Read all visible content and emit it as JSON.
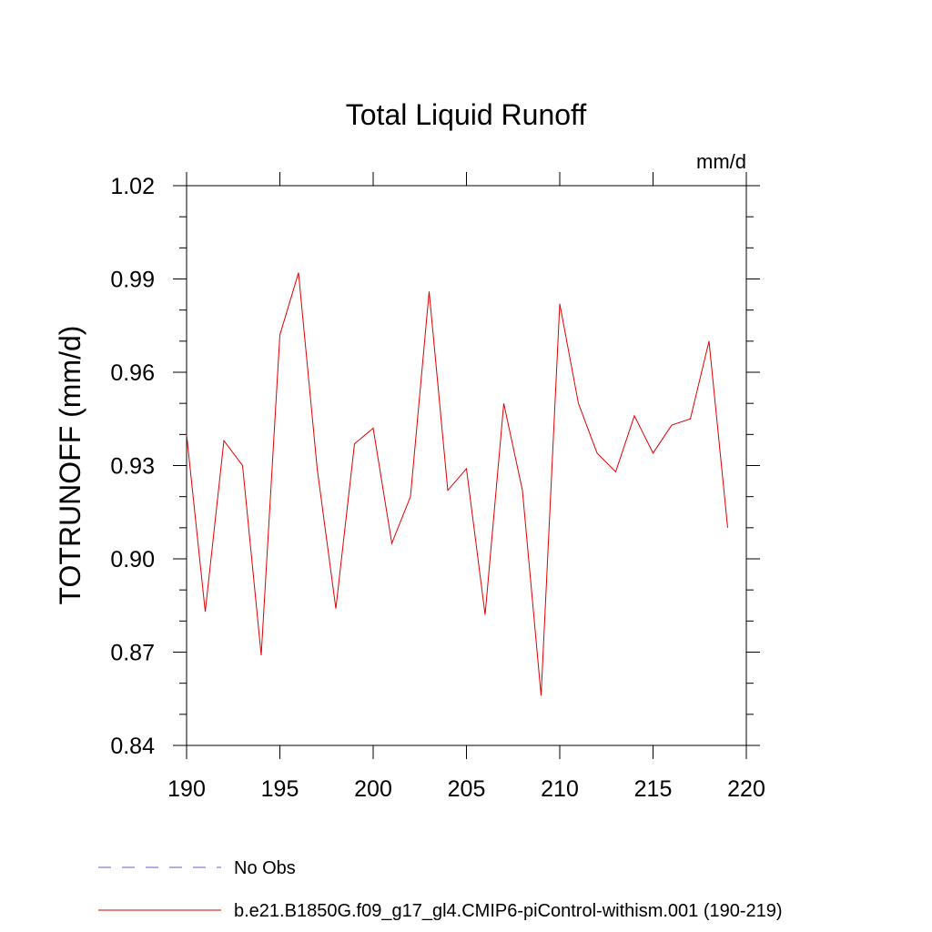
{
  "chart_data": {
    "type": "line",
    "title": "Total Liquid Runoff",
    "units_label": "mm/d",
    "ylabel": "TOTRUNOFF  (mm/d)",
    "xlabel": "",
    "xlim": [
      190,
      220
    ],
    "ylim": [
      0.84,
      1.02
    ],
    "x_ticks": [
      190,
      195,
      200,
      205,
      210,
      215,
      220
    ],
    "x_tick_labels": [
      "190",
      "195",
      "200",
      "205",
      "210",
      "215",
      "220"
    ],
    "y_ticks": [
      0.84,
      0.87,
      0.9,
      0.93,
      0.96,
      0.99,
      1.02
    ],
    "y_tick_labels": [
      "0.84",
      "0.87",
      "0.90",
      "0.93",
      "0.96",
      "0.99",
      "1.02"
    ],
    "grid": false,
    "legend_position": "bottom-left",
    "legend": [
      {
        "label": "No Obs",
        "color": "#6a5acd",
        "style": "dashed"
      },
      {
        "label": "b.e21.B1850G.f09_g17_gl4.CMIP6-piControl-withism.001 (190-219)",
        "color": "#e00000",
        "style": "solid"
      }
    ],
    "series": [
      {
        "name": "b.e21.B1850G.f09_g17_gl4.CMIP6-piControl-withism.001 (190-219)",
        "color": "#e00000",
        "x": [
          190,
          191,
          192,
          193,
          194,
          195,
          196,
          197,
          198,
          199,
          200,
          201,
          202,
          203,
          204,
          205,
          206,
          207,
          208,
          209,
          210,
          211,
          212,
          213,
          214,
          215,
          216,
          217,
          218,
          219
        ],
        "y": [
          0.94,
          0.883,
          0.938,
          0.93,
          0.869,
          0.972,
          0.992,
          0.929,
          0.884,
          0.937,
          0.942,
          0.905,
          0.92,
          0.986,
          0.922,
          0.929,
          0.882,
          0.95,
          0.922,
          0.856,
          0.982,
          0.95,
          0.934,
          0.928,
          0.946,
          0.934,
          0.943,
          0.945,
          0.97,
          0.91
        ]
      }
    ]
  }
}
